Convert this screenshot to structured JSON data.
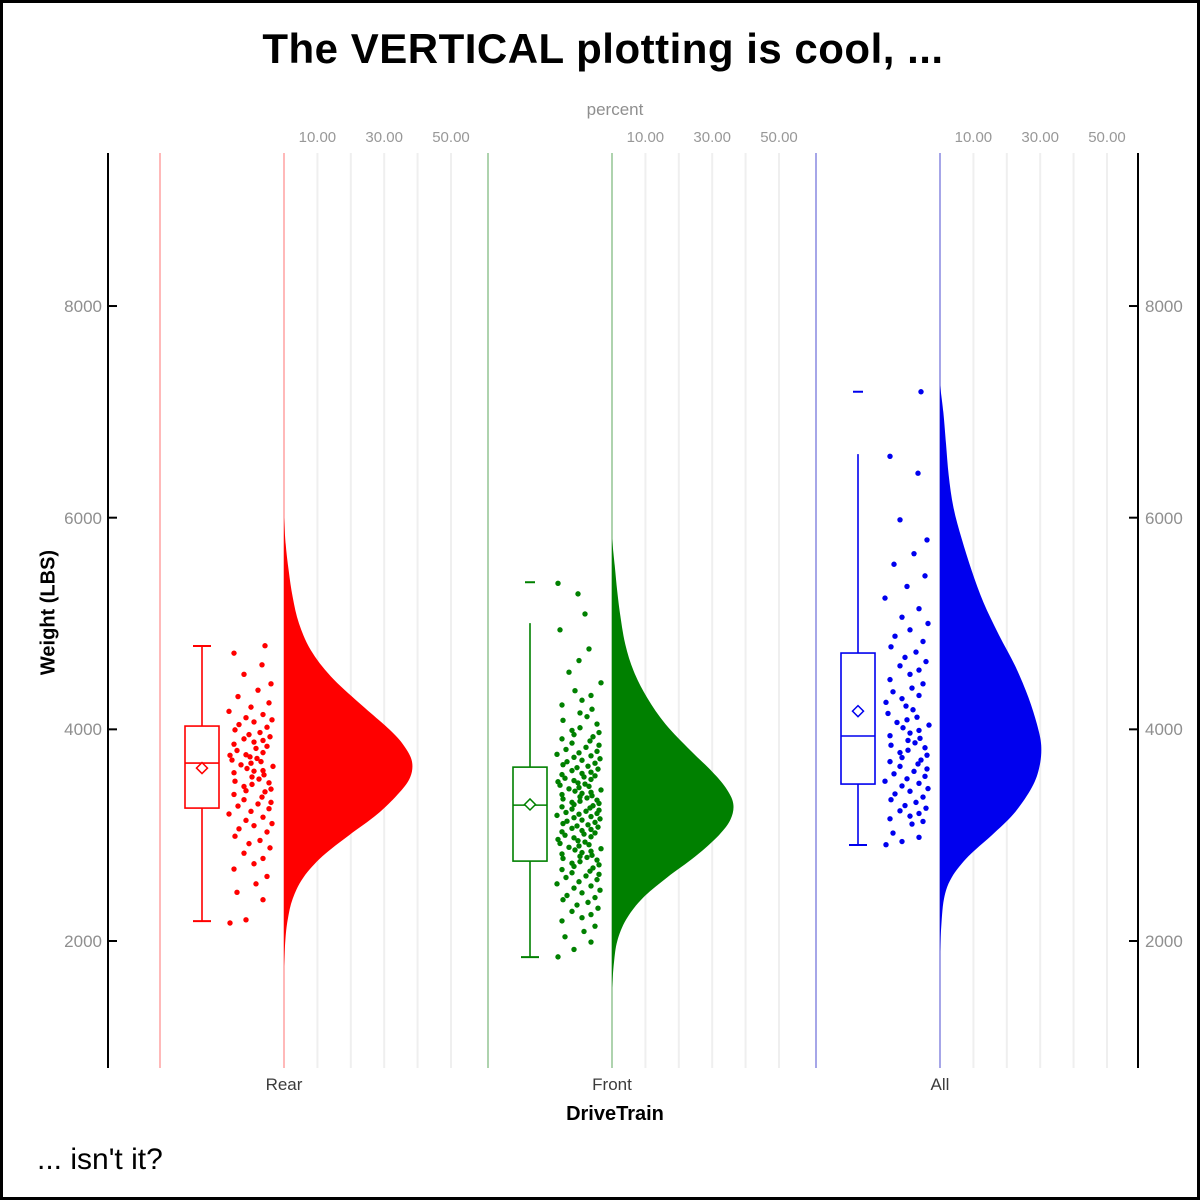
{
  "title": "The VERTICAL plotting is cool, ...",
  "footnote": "... isn't it?",
  "top_axis": {
    "label": "percent",
    "tick_labels": [
      "10.00",
      "30.00",
      "50.00"
    ],
    "tick_values": [
      10,
      30,
      50
    ],
    "grid_values": [
      10,
      20,
      30,
      40,
      50
    ]
  },
  "y_axis": {
    "label": "Weight (LBS)",
    "tick_values": [
      2000,
      4000,
      6000,
      8000
    ],
    "range": [
      800,
      9400
    ]
  },
  "x_axis": {
    "label": "DriveTrain",
    "categories": [
      "Rear",
      "Front",
      "All"
    ]
  },
  "colors": {
    "rear": "#FF0000",
    "rear_light": "#FFB9B9",
    "front": "#008000",
    "front_light": "#AED3AE",
    "all": "#0000EE",
    "all_light": "#A6A6E8",
    "gridline": "#EFEFEF",
    "axis_line": "#000000",
    "tick_text": "#8F8F8F",
    "category_text": "#3C3C3C",
    "text": "#000000"
  },
  "chart_data": {
    "type": "raincloud (half-violin + box plot + jittered points), vertical",
    "title": "The VERTICAL plotting is cool, ...",
    "xlabel": "DriveTrain",
    "ylabel": "Weight (LBS)",
    "top_axis_label": "percent",
    "ylim": [
      800,
      9400
    ],
    "percent_axis": {
      "labeled_ticks": [
        10,
        30,
        50
      ],
      "gridlines": [
        10,
        20,
        30,
        40,
        50
      ]
    },
    "legend": "none",
    "categories": [
      "Rear",
      "Front",
      "All"
    ],
    "groups": [
      {
        "name": "rear",
        "label": "Rear",
        "color": "#FF0000",
        "light_color": "#FFB9B9",
        "box": {
          "whisker_low": 2188,
          "q1": 3256,
          "median": 3681,
          "mean": 3634,
          "q3": 4031,
          "whisker_high": 4787,
          "cap_low": true,
          "cap_high": true
        },
        "outliers": [],
        "violin_profile": [
          [
            6000,
            0
          ],
          [
            5750,
            0.5
          ],
          [
            5500,
            1.4
          ],
          [
            5250,
            2.6
          ],
          [
            5000,
            4.5
          ],
          [
            4750,
            8
          ],
          [
            4500,
            14
          ],
          [
            4250,
            22.5
          ],
          [
            4000,
            31.5
          ],
          [
            3850,
            35.8
          ],
          [
            3700,
            38.3
          ],
          [
            3550,
            37.8
          ],
          [
            3400,
            34.5
          ],
          [
            3200,
            28
          ],
          [
            3000,
            19.5
          ],
          [
            2800,
            11.5
          ],
          [
            2600,
            5.8
          ],
          [
            2400,
            2.6
          ],
          [
            2200,
            1.1
          ],
          [
            2000,
            0.4
          ],
          [
            1750,
            0
          ]
        ],
        "points": [
          2170,
          2200,
          2390,
          2460,
          2540,
          2610,
          2680,
          2730,
          2780,
          2830,
          2880,
          2920,
          2950,
          2990,
          3030,
          3060,
          3090,
          3110,
          3140,
          3170,
          3200,
          3225,
          3250,
          3275,
          3295,
          3310,
          3335,
          3360,
          3385,
          3410,
          3420,
          3435,
          3460,
          3480,
          3495,
          3510,
          3530,
          3550,
          3570,
          3590,
          3605,
          3610,
          3630,
          3650,
          3665,
          3680,
          3695,
          3710,
          3725,
          3740,
          3755,
          3760,
          3780,
          3800,
          3820,
          3840,
          3860,
          3880,
          3895,
          3910,
          3930,
          3950,
          3970,
          3995,
          4020,
          4045,
          4070,
          4090,
          4110,
          4140,
          4170,
          4210,
          4250,
          4310,
          4370,
          4430,
          4520,
          4610,
          4720,
          4790
        ]
      },
      {
        "name": "front",
        "label": "Front",
        "color": "#008000",
        "light_color": "#AED3AE",
        "box": {
          "whisker_low": 1848,
          "q1": 2755,
          "median": 3284,
          "mean": 3290,
          "q3": 3643,
          "whisker_high": 5004,
          "cap_low": true,
          "cap_high": false
        },
        "outliers": [
          5390
        ],
        "violin_profile": [
          [
            5800,
            0
          ],
          [
            5550,
            0.8
          ],
          [
            5300,
            1.6
          ],
          [
            5050,
            2.6
          ],
          [
            4800,
            4
          ],
          [
            4550,
            6.5
          ],
          [
            4300,
            10.5
          ],
          [
            4050,
            16
          ],
          [
            3800,
            23.5
          ],
          [
            3600,
            30
          ],
          [
            3450,
            34
          ],
          [
            3300,
            36.3
          ],
          [
            3150,
            35.5
          ],
          [
            3000,
            32
          ],
          [
            2800,
            25
          ],
          [
            2600,
            16.5
          ],
          [
            2400,
            9
          ],
          [
            2200,
            4.2
          ],
          [
            2000,
            1.6
          ],
          [
            1800,
            0.6
          ],
          [
            1550,
            0
          ]
        ],
        "points": [
          1850,
          1920,
          1990,
          2040,
          2090,
          2140,
          2190,
          2220,
          2250,
          2280,
          2310,
          2340,
          2365,
          2390,
          2410,
          2430,
          2455,
          2480,
          2500,
          2520,
          2540,
          2560,
          2580,
          2600,
          2615,
          2630,
          2645,
          2660,
          2675,
          2690,
          2705,
          2720,
          2735,
          2750,
          2765,
          2780,
          2790,
          2800,
          2810,
          2822,
          2835,
          2848,
          2860,
          2872,
          2885,
          2898,
          2910,
          2922,
          2935,
          2948,
          2960,
          2975,
          2985,
          3000,
          3010,
          3021,
          3032,
          3043,
          3054,
          3065,
          3076,
          3087,
          3098,
          3110,
          3121,
          3132,
          3143,
          3154,
          3165,
          3176,
          3187,
          3198,
          3205,
          3215,
          3226,
          3236,
          3247,
          3257,
          3268,
          3278,
          3289,
          3300,
          3310,
          3321,
          3331,
          3342,
          3352,
          3363,
          3373,
          3384,
          3395,
          3405,
          3416,
          3427,
          3438,
          3450,
          3461,
          3472,
          3483,
          3494,
          3505,
          3516,
          3527,
          3538,
          3550,
          3561,
          3572,
          3583,
          3595,
          3610,
          3624,
          3638,
          3652,
          3666,
          3680,
          3694,
          3708,
          3722,
          3736,
          3750,
          3764,
          3778,
          3792,
          3810,
          3830,
          3850,
          3870,
          3890,
          3910,
          3930,
          3950,
          3970,
          3990,
          4015,
          4050,
          4085,
          4120,
          4155,
          4190,
          4230,
          4275,
          4320,
          4365,
          4440,
          4540,
          4650,
          4760,
          4940,
          5090,
          5280,
          5380
        ]
      },
      {
        "name": "all",
        "label": "All",
        "color": "#0000EE",
        "light_color": "#A6A6E8",
        "box": {
          "whisker_low": 2907,
          "q1": 3483,
          "median": 3937,
          "mean": 4172,
          "q3": 4721,
          "whisker_high": 6601,
          "cap_low": true,
          "cap_high": false
        },
        "outliers": [
          7190
        ],
        "violin_profile": [
          [
            7250,
            0
          ],
          [
            7000,
            1
          ],
          [
            6700,
            1.8
          ],
          [
            6400,
            2.6
          ],
          [
            6100,
            4
          ],
          [
            5800,
            6.5
          ],
          [
            5500,
            9.5
          ],
          [
            5200,
            13
          ],
          [
            4900,
            17.5
          ],
          [
            4600,
            22.5
          ],
          [
            4300,
            26.5
          ],
          [
            4050,
            29
          ],
          [
            3850,
            30.3
          ],
          [
            3650,
            29.8
          ],
          [
            3450,
            27.5
          ],
          [
            3200,
            22
          ],
          [
            3000,
            15.5
          ],
          [
            2800,
            8.5
          ],
          [
            2600,
            3.5
          ],
          [
            2400,
            1.2
          ],
          [
            2100,
            0.3
          ],
          [
            1900,
            0
          ]
        ],
        "points": [
          2910,
          2940,
          2980,
          3020,
          3105,
          3130,
          3155,
          3180,
          3205,
          3230,
          3255,
          3280,
          3310,
          3335,
          3360,
          3390,
          3415,
          3440,
          3465,
          3490,
          3510,
          3533,
          3556,
          3580,
          3603,
          3626,
          3650,
          3673,
          3695,
          3710,
          3733,
          3756,
          3780,
          3803,
          3826,
          3850,
          3873,
          3895,
          3915,
          3940,
          3965,
          3990,
          4015,
          4040,
          4065,
          4090,
          4115,
          4150,
          4185,
          4220,
          4255,
          4290,
          4320,
          4355,
          4390,
          4430,
          4470,
          4520,
          4560,
          4600,
          4640,
          4680,
          4730,
          4780,
          4830,
          4880,
          4940,
          5000,
          5060,
          5140,
          5240,
          5350,
          5450,
          5560,
          5660,
          5790,
          5980,
          6420,
          6580,
          7190
        ]
      }
    ],
    "jitter_dx": [
      -20,
      -6,
      9,
      -14,
      3,
      17,
      -18,
      0,
      12,
      -9,
      20,
      -3,
      6,
      -16,
      14,
      -11,
      2,
      18,
      -5,
      10,
      -21,
      -1,
      15,
      -13,
      5,
      21,
      -8,
      8,
      -17,
      12,
      -4,
      19,
      -10,
      1,
      16,
      -15,
      7,
      -2,
      13,
      -19,
      4,
      11,
      -7,
      22,
      -12,
      1,
      9,
      -22,
      6,
      -3
    ]
  }
}
